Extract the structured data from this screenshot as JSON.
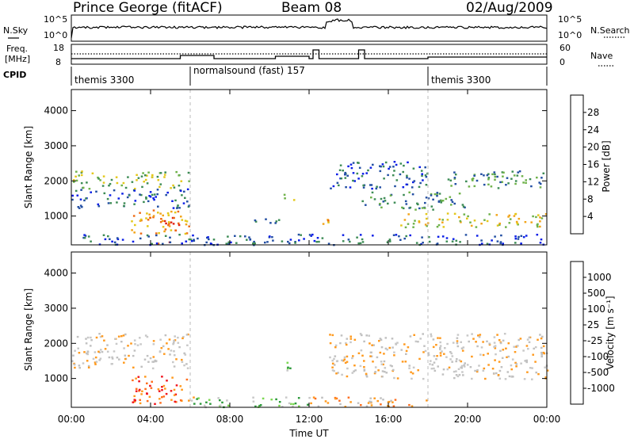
{
  "header": {
    "station": "Prince George (fitACF)",
    "beam": "Beam 08",
    "date": "02/Aug/2009"
  },
  "side_labels": {
    "nsky": "N.Sky",
    "nsearch": "N.Search",
    "freq_line1": "Freq.",
    "freq_line2": "[MHz]",
    "nave": "Nave",
    "cpid": "CPID"
  },
  "noise_panel": {
    "left_ticks": [
      "10^5",
      "10^0"
    ],
    "right_ticks": [
      "10^5",
      "10^0"
    ]
  },
  "freq_panel": {
    "left_ticks": [
      "18",
      "8"
    ],
    "right_ticks": [
      "60",
      "0"
    ]
  },
  "cpid_segments": [
    {
      "label": "themis 3300",
      "start": 0,
      "end": 6
    },
    {
      "label": "normalsound (fast) 157",
      "start": 6,
      "end": 18
    },
    {
      "label": "themis 3300",
      "start": 18,
      "end": 24
    }
  ],
  "colors": {
    "power": [
      "#0a1ee6",
      "#234fa3",
      "#3d8c55",
      "#6fb24a",
      "#e3c719",
      "#f2a418",
      "#ef6a12",
      "#e02112"
    ],
    "velocity": [
      "#f0141e",
      "#ff6e1e",
      "#ff9a1e",
      "#c0c0c0",
      "#c8c8c8",
      "#7bd850",
      "#2e9a3c",
      "#2238a6"
    ],
    "power_scale_label": "Power [dB]",
    "velocity_scale_label": "Velocity [m s⁻¹]"
  },
  "chart_data": [
    {
      "type": "heatmap",
      "title": "Power",
      "xlabel": "Time UT",
      "ylabel": "Slant Range [km]",
      "x_ticks": [
        "00:00",
        "04:00",
        "08:00",
        "12:00",
        "16:00",
        "20:00",
        "00:00"
      ],
      "y_ticks": [
        1000,
        2000,
        3000,
        4000
      ],
      "xlim_hours": [
        0,
        24
      ],
      "ylim_km": [
        180,
        4600
      ],
      "colorbar": {
        "label": "Power [dB]",
        "ticks": [
          "4",
          "8",
          "12",
          "16",
          "20",
          "24",
          "28"
        ],
        "range": [
          0,
          32
        ]
      },
      "echo_regions": [
        {
          "t0": 0.0,
          "t1": 5.9,
          "r0": 1800,
          "r1": 2300,
          "level": 3
        },
        {
          "t0": 0.0,
          "t1": 5.9,
          "r0": 1250,
          "r1": 1800,
          "level": 1
        },
        {
          "t0": 3.0,
          "t1": 6.0,
          "r0": 500,
          "r1": 1200,
          "level": 5
        },
        {
          "t0": 4.2,
          "t1": 5.6,
          "r0": 600,
          "r1": 1000,
          "level": 7
        },
        {
          "t0": 4.1,
          "t1": 5.0,
          "r0": 200,
          "r1": 320,
          "level": 7
        },
        {
          "t0": 0.0,
          "t1": 24.0,
          "r0": 200,
          "r1": 500,
          "level": 1
        },
        {
          "t0": 8.5,
          "t1": 10.5,
          "r0": 800,
          "r1": 950,
          "level": 2
        },
        {
          "t0": 10.7,
          "t1": 11.2,
          "r0": 1350,
          "r1": 1650,
          "level": 4
        },
        {
          "t0": 12.2,
          "t1": 13.0,
          "r0": 800,
          "r1": 1000,
          "level": 5
        },
        {
          "t0": 13.0,
          "t1": 18.0,
          "r0": 1800,
          "r1": 2600,
          "level": 1
        },
        {
          "t0": 14.5,
          "t1": 20.0,
          "r0": 1200,
          "r1": 1700,
          "level": 2
        },
        {
          "t0": 16.5,
          "t1": 24.0,
          "r0": 700,
          "r1": 1100,
          "level": 4
        },
        {
          "t0": 18.5,
          "t1": 24.0,
          "r0": 1800,
          "r1": 2300,
          "level": 2
        }
      ]
    },
    {
      "type": "heatmap",
      "title": "Velocity",
      "xlabel": "Time UT",
      "ylabel": "Slant Range [km]",
      "x_ticks": [
        "00:00",
        "04:00",
        "08:00",
        "12:00",
        "16:00",
        "20:00",
        "00:00"
      ],
      "y_ticks": [
        1000,
        2000,
        3000,
        4000
      ],
      "xlim_hours": [
        0,
        24
      ],
      "ylim_km": [
        180,
        4600
      ],
      "colorbar": {
        "label": "Velocity [m s⁻¹]",
        "ticks": [
          "-1000",
          "-500",
          "-100",
          "-25",
          "25",
          "100",
          "500",
          "1000"
        ],
        "range": [
          -1000,
          1000
        ]
      },
      "echo_regions": [
        {
          "t0": 0.0,
          "t1": 5.9,
          "r0": 1300,
          "r1": 2300,
          "level": 3
        },
        {
          "t0": 3.0,
          "t1": 6.2,
          "r0": 300,
          "r1": 1100,
          "level": 1
        },
        {
          "t0": 6.0,
          "t1": 12.0,
          "r0": 200,
          "r1": 500,
          "level": 5
        },
        {
          "t0": 10.7,
          "t1": 11.3,
          "r0": 1200,
          "r1": 1600,
          "level": 5
        },
        {
          "t0": 13.0,
          "t1": 24.0,
          "r0": 1000,
          "r1": 2300,
          "level": 3
        },
        {
          "t0": 12.0,
          "t1": 18.0,
          "r0": 200,
          "r1": 500,
          "level": 2
        }
      ]
    }
  ]
}
